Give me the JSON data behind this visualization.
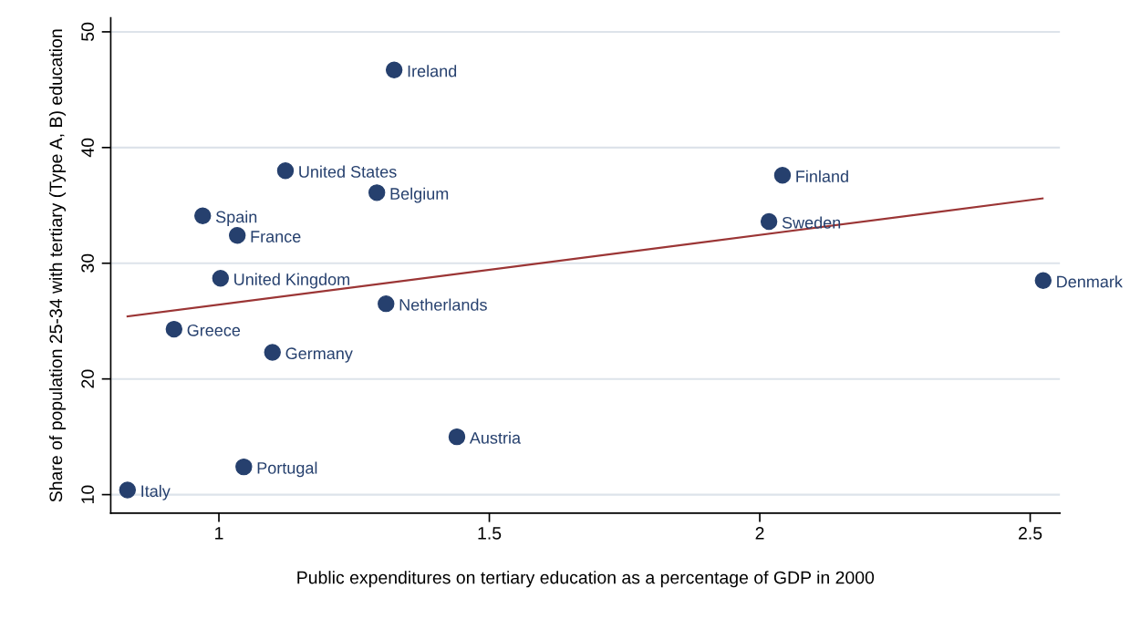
{
  "chart_data": {
    "type": "scatter",
    "xlabel": "Public expenditures on tertiary education as a percentage of GDP in 2000",
    "ylabel": "Share of population 25-34 with tertiary (Type A, B) education",
    "xlim": [
      0.8,
      2.555
    ],
    "xticks": [
      1,
      1.5,
      2,
      2.5
    ],
    "ylim": [
      8.4,
      51.2
    ],
    "yticks": [
      10,
      20,
      30,
      40,
      50
    ],
    "grid": "y",
    "marker": "circle",
    "series": [
      {
        "color": "#26406e",
        "x": [
          1.324,
          1.123,
          1.292,
          0.97,
          1.034,
          1.003,
          1.309,
          0.917,
          1.099,
          1.44,
          1.046,
          0.831,
          2.042,
          2.017,
          2.524
        ],
        "values": [
          46.7,
          38.0,
          36.1,
          34.1,
          32.4,
          28.7,
          26.5,
          24.3,
          22.3,
          15.0,
          12.4,
          10.4,
          37.6,
          33.6,
          28.5
        ]
      },
      {
        "type": "line",
        "marker": "none",
        "color": "#9b3535",
        "x": [
          0.831,
          2.523
        ],
        "values": [
          25.4,
          35.6
        ]
      }
    ],
    "annotations": [
      {
        "text": "Ireland",
        "x": 1.324,
        "y": 46.7
      },
      {
        "text": "United States",
        "x": 1.123,
        "y": 38.0
      },
      {
        "text": "Belgium",
        "x": 1.292,
        "y": 36.1
      },
      {
        "text": "Spain",
        "x": 0.97,
        "y": 34.1
      },
      {
        "text": "France",
        "x": 1.034,
        "y": 32.4
      },
      {
        "text": "United Kingdom",
        "x": 1.003,
        "y": 28.7
      },
      {
        "text": "Netherlands",
        "x": 1.309,
        "y": 26.5
      },
      {
        "text": "Greece",
        "x": 0.917,
        "y": 24.3
      },
      {
        "text": "Germany",
        "x": 1.099,
        "y": 22.3
      },
      {
        "text": "Austria",
        "x": 1.44,
        "y": 15.0
      },
      {
        "text": "Portugal",
        "x": 1.046,
        "y": 12.4
      },
      {
        "text": "Italy",
        "x": 0.831,
        "y": 10.4
      },
      {
        "text": "Finland",
        "x": 2.042,
        "y": 37.6
      },
      {
        "text": "Sweden",
        "x": 2.017,
        "y": 33.6
      },
      {
        "text": "Denmark",
        "x": 2.524,
        "y": 28.5
      }
    ]
  }
}
